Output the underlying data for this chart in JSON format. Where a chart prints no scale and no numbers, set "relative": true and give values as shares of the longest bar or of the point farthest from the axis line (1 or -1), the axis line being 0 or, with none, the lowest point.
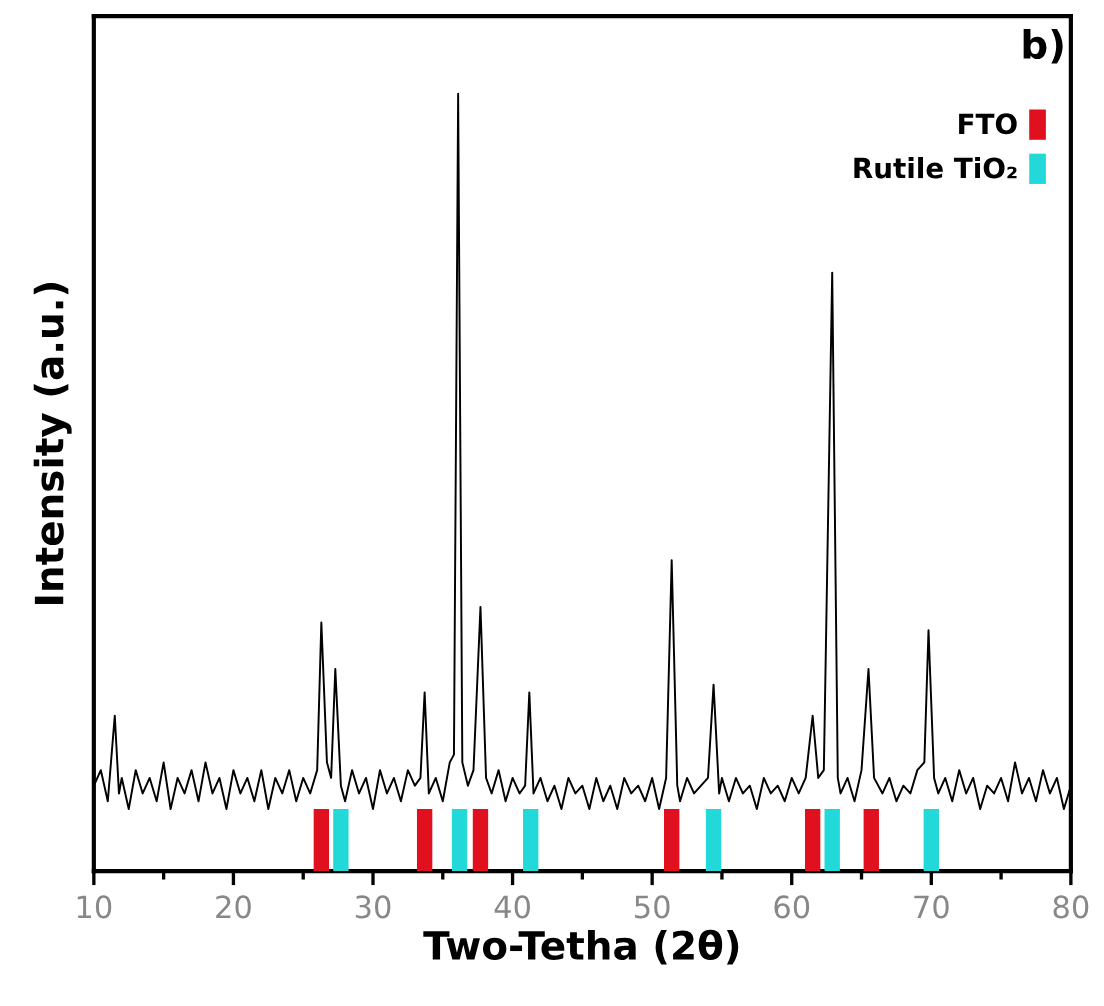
{
  "chart_data": {
    "type": "line",
    "relative": true,
    "xlabel": "Two-Tetha (2θ)",
    "ylabel": "Intensity (a.u.)",
    "annotations": [
      "b)"
    ],
    "xlim": [
      10,
      80
    ],
    "xticks": [
      10,
      {
        "value": 15,
        "label": null
      },
      20,
      {
        "value": 25,
        "label": null
      },
      30,
      {
        "value": 35,
        "label": null
      },
      40,
      {
        "value": 45,
        "label": null
      },
      50,
      {
        "value": 55,
        "label": null
      },
      60,
      {
        "value": 65,
        "label": null
      },
      70,
      {
        "value": 75,
        "label": null
      },
      80
    ],
    "legend": "top right",
    "series": [
      {
        "color": "#000000",
        "x": [
          10.0,
          10.5,
          11.0,
          11.5,
          11.8,
          12.0,
          12.5,
          13.0,
          13.5,
          14.0,
          14.5,
          15.0,
          15.5,
          16.0,
          16.5,
          17.0,
          17.5,
          18.0,
          18.5,
          19.0,
          19.5,
          20.0,
          20.5,
          21.0,
          21.5,
          22.0,
          22.5,
          23.0,
          23.5,
          24.0,
          24.5,
          25.0,
          25.5,
          26.0,
          26.3,
          26.7,
          27.0,
          27.3,
          27.7,
          28.0,
          28.5,
          29.0,
          29.5,
          30.0,
          30.5,
          31.0,
          31.5,
          32.0,
          32.5,
          33.0,
          33.4,
          33.7,
          34.0,
          34.5,
          35.0,
          35.5,
          35.8,
          36.1,
          36.4,
          36.8,
          37.2,
          37.7,
          38.1,
          38.5,
          39.0,
          39.5,
          40.0,
          40.5,
          40.9,
          41.2,
          41.5,
          42.0,
          42.5,
          43.0,
          43.5,
          44.0,
          44.5,
          45.0,
          45.5,
          46.0,
          46.5,
          47.0,
          47.5,
          48.0,
          48.5,
          49.0,
          49.5,
          50.0,
          50.5,
          51.0,
          51.4,
          51.8,
          52.0,
          52.5,
          53.0,
          53.5,
          54.0,
          54.4,
          54.8,
          55.0,
          55.5,
          56.0,
          56.5,
          57.0,
          57.5,
          58.0,
          58.5,
          59.0,
          59.5,
          60.0,
          60.5,
          61.0,
          61.5,
          61.9,
          62.3,
          62.9,
          63.3,
          63.5,
          64.0,
          64.5,
          65.0,
          65.5,
          65.9,
          66.5,
          67.0,
          67.5,
          68.0,
          68.5,
          69.0,
          69.5,
          69.8,
          70.2,
          70.5,
          71.0,
          71.5,
          72.0,
          72.5,
          73.0,
          73.5,
          74.0,
          74.5,
          75.0,
          75.5,
          76.0,
          76.5,
          77.0,
          77.5,
          78.0,
          78.5,
          79.0,
          79.5,
          80.0
        ],
        "values": [
          0.11,
          0.13,
          0.09,
          0.2,
          0.1,
          0.12,
          0.08,
          0.13,
          0.1,
          0.12,
          0.09,
          0.14,
          0.08,
          0.12,
          0.1,
          0.13,
          0.09,
          0.14,
          0.1,
          0.12,
          0.08,
          0.13,
          0.1,
          0.12,
          0.09,
          0.13,
          0.08,
          0.12,
          0.1,
          0.13,
          0.09,
          0.12,
          0.1,
          0.13,
          0.32,
          0.14,
          0.12,
          0.26,
          0.11,
          0.09,
          0.13,
          0.1,
          0.12,
          0.08,
          0.13,
          0.1,
          0.12,
          0.09,
          0.13,
          0.11,
          0.12,
          0.23,
          0.1,
          0.12,
          0.09,
          0.14,
          0.15,
          1.0,
          0.14,
          0.11,
          0.13,
          0.34,
          0.12,
          0.1,
          0.13,
          0.09,
          0.12,
          0.1,
          0.11,
          0.23,
          0.1,
          0.12,
          0.09,
          0.11,
          0.08,
          0.12,
          0.1,
          0.11,
          0.08,
          0.12,
          0.09,
          0.11,
          0.08,
          0.12,
          0.1,
          0.11,
          0.09,
          0.12,
          0.08,
          0.12,
          0.4,
          0.11,
          0.09,
          0.12,
          0.1,
          0.11,
          0.12,
          0.24,
          0.1,
          0.12,
          0.09,
          0.12,
          0.1,
          0.11,
          0.08,
          0.12,
          0.1,
          0.11,
          0.09,
          0.12,
          0.1,
          0.12,
          0.2,
          0.12,
          0.13,
          0.77,
          0.12,
          0.1,
          0.12,
          0.09,
          0.13,
          0.26,
          0.12,
          0.1,
          0.12,
          0.09,
          0.11,
          0.1,
          0.13,
          0.14,
          0.31,
          0.12,
          0.1,
          0.12,
          0.09,
          0.13,
          0.1,
          0.12,
          0.08,
          0.11,
          0.1,
          0.12,
          0.09,
          0.14,
          0.1,
          0.12,
          0.09,
          0.13,
          0.1,
          0.12,
          0.08,
          0.11
        ]
      },
      {
        "type": "bar",
        "name": "FTO",
        "color": "#e0101e",
        "x": [
          26.3,
          33.7,
          37.7,
          51.4,
          61.5,
          65.7
        ],
        "values": [
          0.08,
          0.08,
          0.08,
          0.08,
          0.08,
          0.08
        ]
      },
      {
        "type": "bar",
        "name": "Rutile TiO₂",
        "color": "#22d8d8",
        "x": [
          27.7,
          36.2,
          41.3,
          54.4,
          62.9,
          70.0
        ],
        "values": [
          0.08,
          0.08,
          0.08,
          0.08,
          0.08,
          0.08
        ]
      }
    ]
  }
}
